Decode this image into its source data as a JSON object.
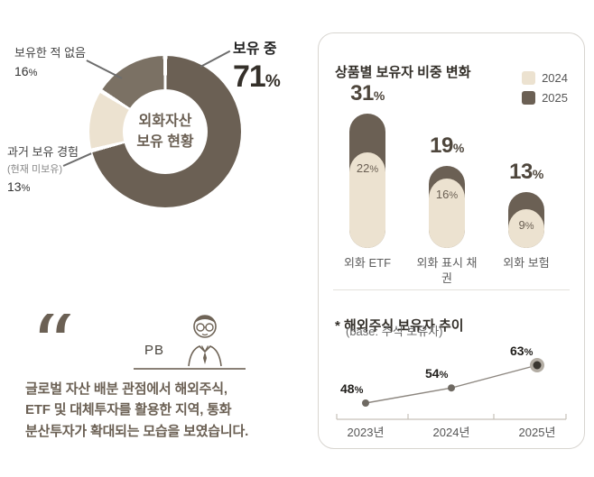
{
  "palette": {
    "dark": "#6b6054",
    "beige": "#ece2d0",
    "never_segment": "#7b7164",
    "text_dark": "#332f29",
    "axis_gray": "#c6c1b9"
  },
  "donut": {
    "center_title": "외화자산\n보유 현황",
    "callout_holding": {
      "label": "보유 중",
      "value": "71",
      "unit": "%"
    },
    "callout_never": {
      "label": "보유한 적 없음",
      "value": "16",
      "unit": "%"
    },
    "callout_past": {
      "label": "과거 보유 경험",
      "sublabel": "(현재 미보유)",
      "value": "13",
      "unit": "%"
    }
  },
  "card": {
    "title": "상품별 보유자 비중 변화",
    "legend": [
      {
        "label": "2024",
        "color": "#ece2d0"
      },
      {
        "label": "2025",
        "color": "#6b6054"
      }
    ],
    "bars": [
      {
        "category": "외화 ETF",
        "top": {
          "value": "31",
          "unit": "%"
        },
        "inner": {
          "value": "22",
          "unit": "%"
        }
      },
      {
        "category": "외화 표시 채권",
        "top": {
          "value": "19",
          "unit": "%"
        },
        "inner": {
          "value": "16",
          "unit": "%"
        }
      },
      {
        "category": "외화 보험",
        "top": {
          "value": "13",
          "unit": "%"
        },
        "inner": {
          "value": "9",
          "unit": "%"
        }
      }
    ],
    "line_section": {
      "title": "* 해외주식 보유자 추이",
      "subtitle": "(base: 주식 보유자)",
      "points": [
        {
          "year": "2023년",
          "value": "48",
          "unit": "%"
        },
        {
          "year": "2024년",
          "value": "54",
          "unit": "%"
        },
        {
          "year": "2025년",
          "value": "63",
          "unit": "%"
        }
      ]
    }
  },
  "quote": {
    "mark": "“",
    "pb_label": "PB",
    "lines": [
      "글로벌 자산 배분 관점에서 해외주식,",
      "ETF 및 대체투자를 활용한 지역, 통화",
      "분산투자가 확대되는 모습을 보였습니다."
    ]
  },
  "chart_data": [
    {
      "id": "holding-donut",
      "type": "pie",
      "title": "외화자산 보유 현황",
      "labels": [
        "보유 중",
        "과거 보유 경험(현재 미보유)",
        "보유한 적 없음"
      ],
      "values": [
        71,
        13,
        16
      ],
      "colors": [
        "#6b6054",
        "#ece2d0",
        "#7b7164"
      ],
      "unit": "%"
    },
    {
      "id": "product-bars",
      "type": "bar",
      "title": "상품별 보유자 비중 변화",
      "categories": [
        "외화 ETF",
        "외화 표시 채권",
        "외화 보험"
      ],
      "series": [
        {
          "name": "2024",
          "values": [
            22,
            16,
            9
          ],
          "color": "#ece2d0"
        },
        {
          "name": "2025",
          "values": [
            31,
            19,
            13
          ],
          "color": "#6b6054"
        }
      ],
      "unit": "%",
      "ylim": [
        0,
        35
      ],
      "legend_position": "top-right"
    },
    {
      "id": "overseas-stock-line",
      "type": "line",
      "title": "해외주식 보유자 추이",
      "subtitle": "base: 주식 보유자",
      "x": [
        "2023년",
        "2024년",
        "2025년"
      ],
      "values": [
        48,
        54,
        63
      ],
      "unit": "%"
    }
  ]
}
